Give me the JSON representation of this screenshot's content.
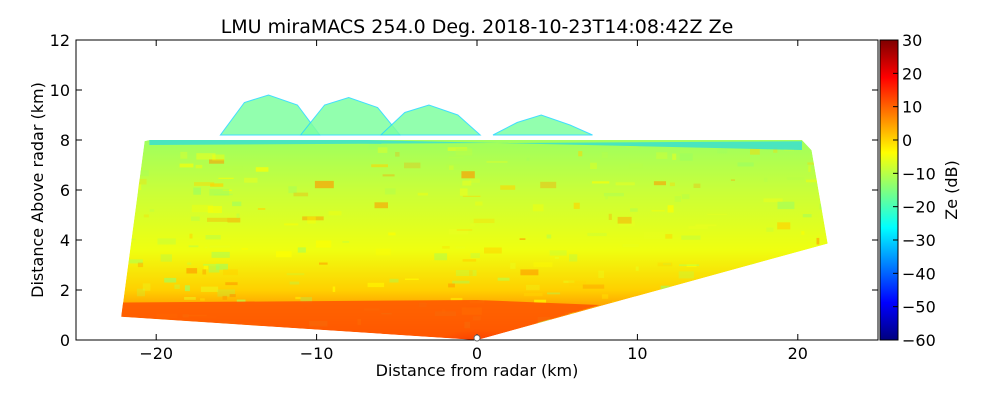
{
  "chart_data": {
    "type": "heatmap",
    "title": "LMU miraMACS 254.0 Deg. 2018-10-23T14:08:42Z  Ze",
    "xlabel": "Distance from radar (km)",
    "ylabel": "Distance Above radar  (km)",
    "xlim": [
      -25,
      25
    ],
    "ylim": [
      0,
      12
    ],
    "x_ticks": [
      -20,
      -10,
      0,
      10,
      20
    ],
    "y_ticks": [
      0,
      2,
      4,
      6,
      8,
      10,
      12
    ],
    "grid": false,
    "scan": {
      "type": "RHI",
      "azimuth_deg": 254.0,
      "max_range_km": 22.2,
      "left_low_elevation_deg": 2.4,
      "left_high_elevation_deg": 21.0,
      "right_low_elevation_deg": 10.0,
      "right_high_elevation_deg": 20.0,
      "cloud_top_km": 8.0,
      "cloud_top_peaks_km": [
        9.8,
        9.7,
        9.4,
        9.0
      ]
    },
    "colorbar": {
      "label": "Ze (dB)",
      "vmin": -60,
      "vmax": 30,
      "ticks": [
        -60,
        -50,
        -40,
        -30,
        -20,
        -10,
        0,
        10,
        20,
        30
      ],
      "colormap": "jet"
    }
  },
  "colors": {
    "background": "#ffffff",
    "axis": "#000000",
    "jet": [
      "#00007f",
      "#0000ff",
      "#007fff",
      "#00ffff",
      "#7fff7f",
      "#ffff00",
      "#ff7f00",
      "#ff0000",
      "#7f0000"
    ]
  }
}
